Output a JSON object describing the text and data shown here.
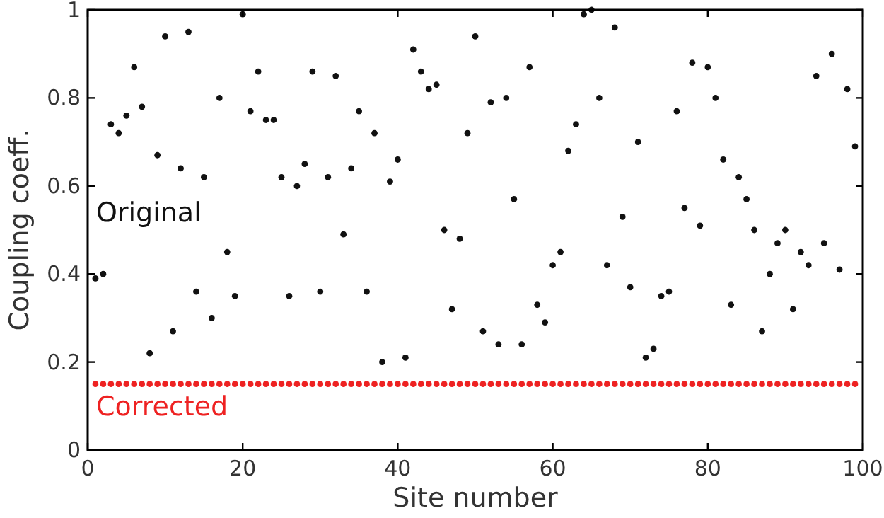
{
  "chart_data": {
    "type": "scatter",
    "xlabel": "Site number",
    "ylabel": "Coupling coeff.",
    "xlim": [
      0,
      100
    ],
    "ylim": [
      0,
      1
    ],
    "xticks": [
      0,
      20,
      40,
      60,
      80,
      100
    ],
    "yticks": [
      0,
      0.2,
      0.4,
      0.6,
      0.8,
      1
    ],
    "grid": false,
    "marker": "circle",
    "series": [
      {
        "name": "Original",
        "color": "#111111",
        "x": [
          1,
          2,
          3,
          4,
          5,
          6,
          7,
          8,
          9,
          10,
          11,
          12,
          13,
          14,
          15,
          16,
          17,
          18,
          19,
          20,
          21,
          22,
          23,
          24,
          25,
          26,
          27,
          28,
          29,
          30,
          31,
          32,
          33,
          34,
          35,
          36,
          37,
          38,
          39,
          40,
          41,
          42,
          43,
          44,
          45,
          46,
          47,
          48,
          49,
          50,
          51,
          52,
          53,
          54,
          55,
          56,
          57,
          58,
          59,
          60,
          61,
          62,
          63,
          64,
          65,
          66,
          67,
          68,
          69,
          70,
          71,
          72,
          73,
          74,
          75,
          76,
          77,
          78,
          79,
          80,
          81,
          82,
          83,
          84,
          85,
          86,
          87,
          88,
          89,
          90,
          91,
          92,
          93,
          94,
          95,
          96,
          97,
          98,
          99
        ],
        "values": [
          0.39,
          0.4,
          0.74,
          0.72,
          0.76,
          0.87,
          0.78,
          0.22,
          0.67,
          0.94,
          0.27,
          0.64,
          0.95,
          0.36,
          0.62,
          0.3,
          0.8,
          0.45,
          0.35,
          0.99,
          0.77,
          0.86,
          0.75,
          0.75,
          0.62,
          0.35,
          0.6,
          0.65,
          0.86,
          0.36,
          0.62,
          0.85,
          0.49,
          0.64,
          0.77,
          0.36,
          0.72,
          0.2,
          0.61,
          0.66,
          0.21,
          0.91,
          0.86,
          0.82,
          0.83,
          0.5,
          0.32,
          0.48,
          0.72,
          0.94,
          0.27,
          0.79,
          0.24,
          0.8,
          0.57,
          0.24,
          0.87,
          0.33,
          0.29,
          0.42,
          0.45,
          0.68,
          0.74,
          0.99,
          1.0,
          0.8,
          0.42,
          0.96,
          0.53,
          0.37,
          0.7,
          0.21,
          0.23,
          0.35,
          0.36,
          0.77,
          0.55,
          0.88,
          0.51,
          0.87,
          0.8,
          0.66,
          0.33,
          0.62,
          0.57,
          0.5,
          0.27,
          0.4,
          0.47,
          0.5,
          0.32,
          0.45,
          0.42,
          0.85,
          0.47,
          0.9,
          0.41,
          0.82,
          0.69
        ]
      },
      {
        "name": "Corrected",
        "color": "#ee2222",
        "x": [
          1,
          2,
          3,
          4,
          5,
          6,
          7,
          8,
          9,
          10,
          11,
          12,
          13,
          14,
          15,
          16,
          17,
          18,
          19,
          20,
          21,
          22,
          23,
          24,
          25,
          26,
          27,
          28,
          29,
          30,
          31,
          32,
          33,
          34,
          35,
          36,
          37,
          38,
          39,
          40,
          41,
          42,
          43,
          44,
          45,
          46,
          47,
          48,
          49,
          50,
          51,
          52,
          53,
          54,
          55,
          56,
          57,
          58,
          59,
          60,
          61,
          62,
          63,
          64,
          65,
          66,
          67,
          68,
          69,
          70,
          71,
          72,
          73,
          74,
          75,
          76,
          77,
          78,
          79,
          80,
          81,
          82,
          83,
          84,
          85,
          86,
          87,
          88,
          89,
          90,
          91,
          92,
          93,
          94,
          95,
          96,
          97,
          98,
          99
        ],
        "values": [
          0.15,
          0.15,
          0.15,
          0.15,
          0.15,
          0.15,
          0.15,
          0.15,
          0.15,
          0.15,
          0.15,
          0.15,
          0.15,
          0.15,
          0.15,
          0.15,
          0.15,
          0.15,
          0.15,
          0.15,
          0.15,
          0.15,
          0.15,
          0.15,
          0.15,
          0.15,
          0.15,
          0.15,
          0.15,
          0.15,
          0.15,
          0.15,
          0.15,
          0.15,
          0.15,
          0.15,
          0.15,
          0.15,
          0.15,
          0.15,
          0.15,
          0.15,
          0.15,
          0.15,
          0.15,
          0.15,
          0.15,
          0.15,
          0.15,
          0.15,
          0.15,
          0.15,
          0.15,
          0.15,
          0.15,
          0.15,
          0.15,
          0.15,
          0.15,
          0.15,
          0.15,
          0.15,
          0.15,
          0.15,
          0.15,
          0.15,
          0.15,
          0.15,
          0.15,
          0.15,
          0.15,
          0.15,
          0.15,
          0.15,
          0.15,
          0.15,
          0.15,
          0.15,
          0.15,
          0.15,
          0.15,
          0.15,
          0.15,
          0.15,
          0.15,
          0.15,
          0.15,
          0.15,
          0.15,
          0.15,
          0.15,
          0.15,
          0.15,
          0.15,
          0.15,
          0.15,
          0.15,
          0.15,
          0.15
        ]
      }
    ]
  }
}
